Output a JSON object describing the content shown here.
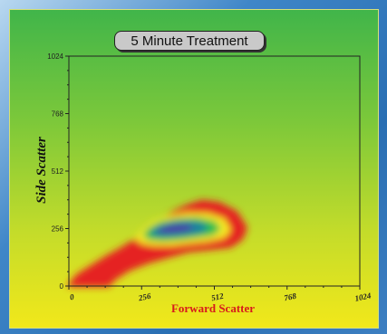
{
  "chart_data": {
    "type": "heatmap",
    "title": "5 Minute Treatment",
    "xlabel": "Forward Scatter",
    "ylabel": "Side Scatter",
    "xlim": [
      0,
      1024
    ],
    "ylim": [
      0,
      1024
    ],
    "x_ticks": [
      0,
      256,
      512,
      768,
      1024
    ],
    "y_ticks": [
      0,
      256,
      512,
      768,
      1024
    ],
    "density_levels": [
      "red",
      "yellow",
      "green",
      "blue"
    ],
    "colors": {
      "red": "#e52020",
      "yellow": "#f7ea20",
      "green": "#2fbf4c",
      "teal": "#1e7fa0",
      "blue": "#4b3ca8"
    },
    "contours": [
      {
        "level": "red",
        "points": [
          [
            0,
            0
          ],
          [
            10,
            20
          ],
          [
            30,
            50
          ],
          [
            80,
            90
          ],
          [
            130,
            130
          ],
          [
            180,
            165
          ],
          [
            240,
            210
          ],
          [
            290,
            260
          ],
          [
            330,
            295
          ],
          [
            370,
            330
          ],
          [
            420,
            360
          ],
          [
            470,
            380
          ],
          [
            530,
            370
          ],
          [
            590,
            330
          ],
          [
            625,
            260
          ],
          [
            610,
            210
          ],
          [
            570,
            175
          ],
          [
            500,
            165
          ],
          [
            420,
            155
          ],
          [
            350,
            130
          ],
          [
            280,
            105
          ],
          [
            210,
            70
          ],
          [
            160,
            30
          ],
          [
            140,
            0
          ]
        ]
      },
      {
        "level": "yellow",
        "points": [
          [
            240,
            215
          ],
          [
            265,
            250
          ],
          [
            300,
            285
          ],
          [
            350,
            305
          ],
          [
            420,
            320
          ],
          [
            490,
            318
          ],
          [
            545,
            295
          ],
          [
            565,
            250
          ],
          [
            545,
            220
          ],
          [
            490,
            205
          ],
          [
            420,
            195
          ],
          [
            360,
            185
          ],
          [
            300,
            185
          ],
          [
            255,
            195
          ]
        ]
      },
      {
        "level": "green",
        "points": [
          [
            265,
            225
          ],
          [
            285,
            255
          ],
          [
            320,
            280
          ],
          [
            380,
            295
          ],
          [
            450,
            300
          ],
          [
            510,
            285
          ],
          [
            530,
            255
          ],
          [
            505,
            230
          ],
          [
            450,
            220
          ],
          [
            390,
            210
          ],
          [
            330,
            205
          ],
          [
            285,
            210
          ]
        ]
      },
      {
        "level": "teal",
        "points": [
          [
            290,
            235
          ],
          [
            315,
            260
          ],
          [
            360,
            278
          ],
          [
            420,
            285
          ],
          [
            470,
            275
          ],
          [
            485,
            255
          ],
          [
            455,
            240
          ],
          [
            400,
            230
          ],
          [
            345,
            225
          ],
          [
            305,
            228
          ]
        ]
      },
      {
        "level": "blue",
        "points": [
          [
            315,
            245
          ],
          [
            340,
            262
          ],
          [
            380,
            270
          ],
          [
            420,
            268
          ],
          [
            430,
            255
          ],
          [
            400,
            245
          ],
          [
            360,
            240
          ],
          [
            330,
            240
          ]
        ]
      }
    ]
  }
}
